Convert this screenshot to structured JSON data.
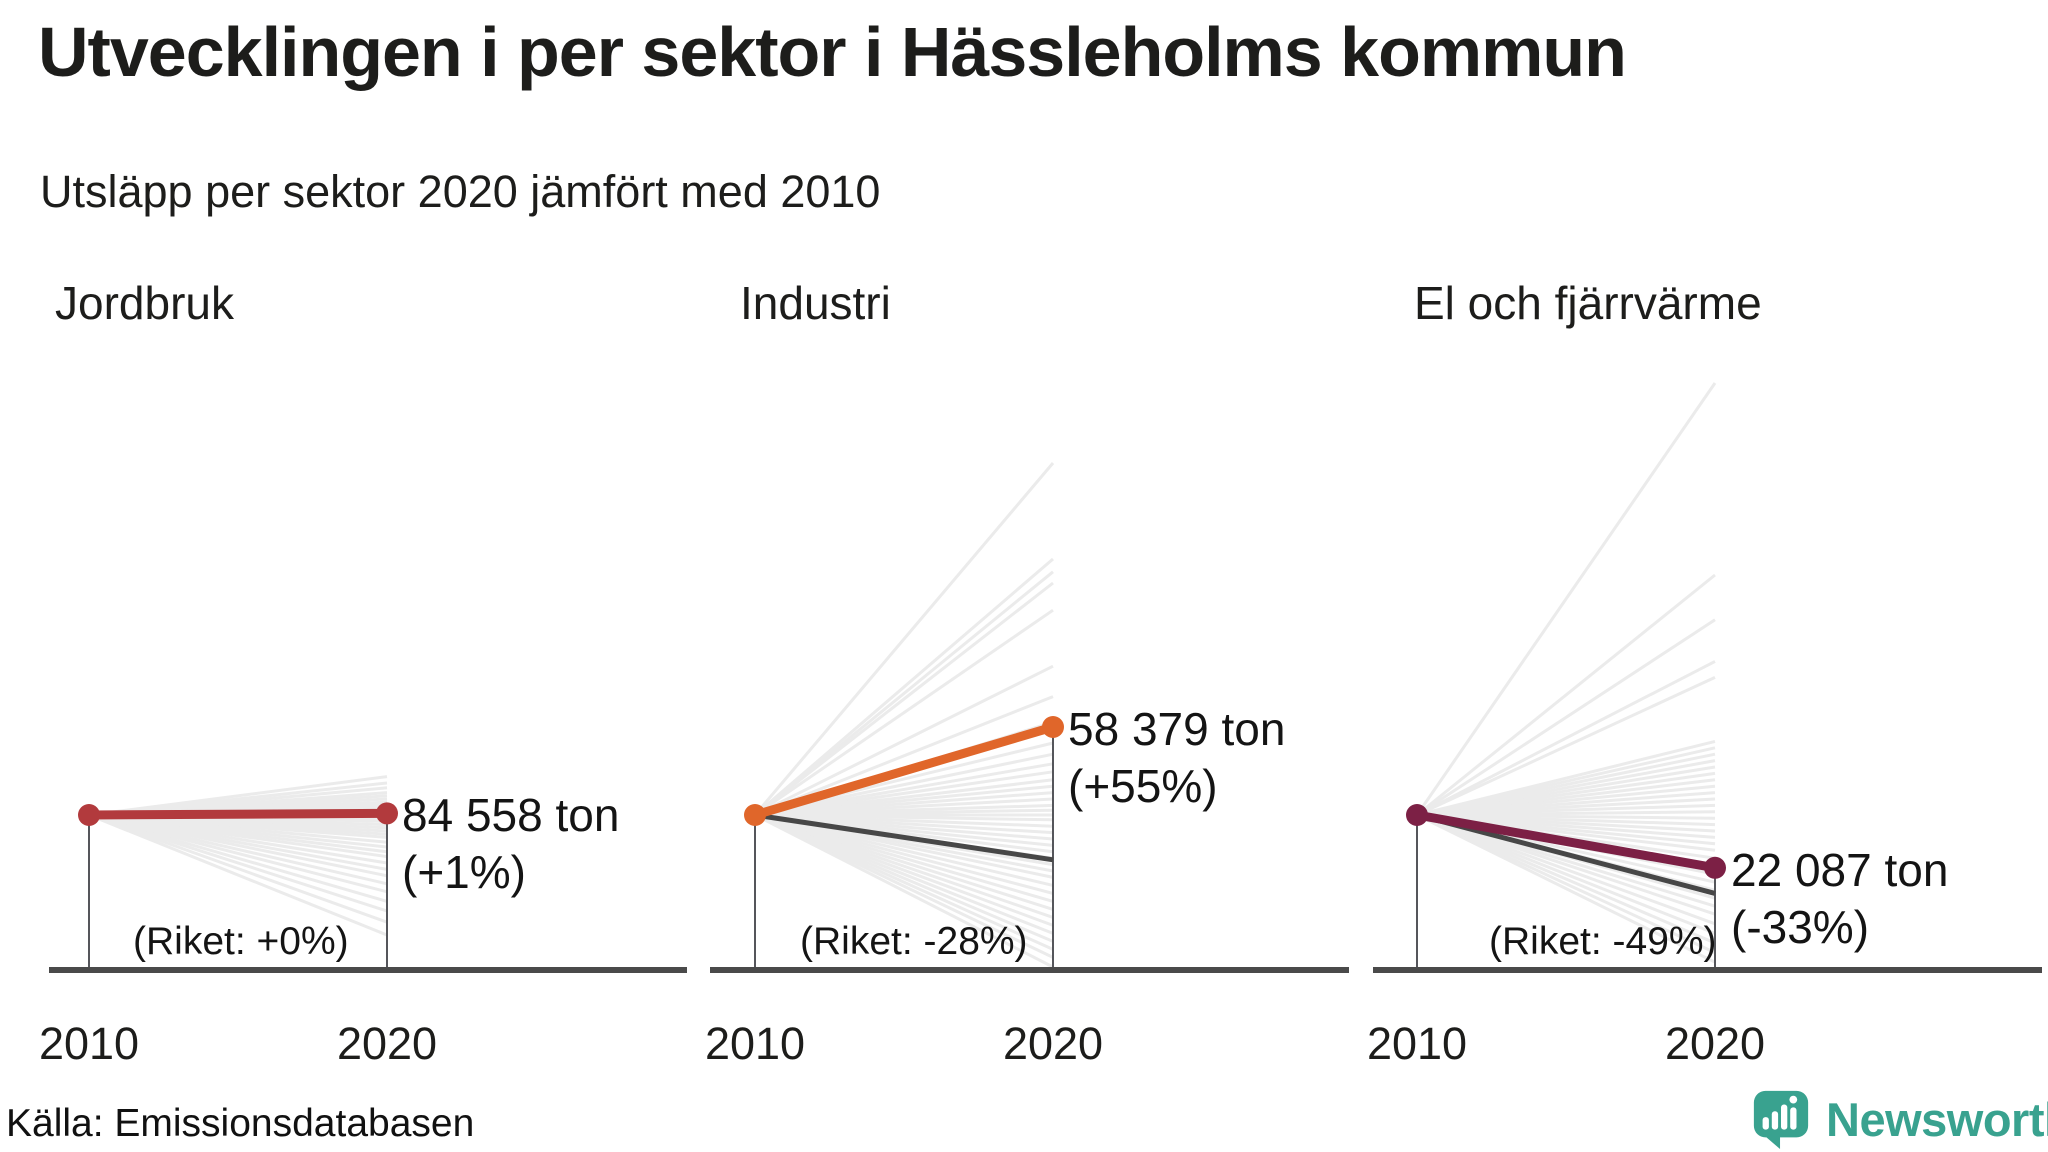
{
  "header": {
    "title": "Utvecklingen i per sektor i Hässleholms kommun",
    "subtitle": "Utsläpp per sektor 2020 jämfört med 2010"
  },
  "source_label": "Källa: Emissionsdatabasen",
  "brand": {
    "name": "Newsworthy",
    "color": "#39a28f",
    "icon": "newsworthy-speech-bubble-barchart-icon"
  },
  "chart_data": {
    "type": "line",
    "variant": "slope-fan-small-multiples",
    "description": "Three slope charts comparing 2020 emissions vs 2010 per sector; gray fan lines are other municipalities (estimated), dark line is national average (Riket), colored line is Hässleholms kommun.",
    "x_labels": [
      "2010",
      "2020"
    ],
    "unit": "ton",
    "grid": false,
    "panels": [
      {
        "title": "Jordbruk",
        "color": "#b23a3d",
        "value_2020_ton": 84558,
        "value_label": "84 558 ton",
        "change_pct": 1,
        "change_label": "(+1%)",
        "riket_pct": 0,
        "riket_label": "(Riket: +0%)",
        "background_lines_pct": [
          24,
          20,
          17,
          14,
          12,
          10,
          8,
          6.5,
          5,
          3.5,
          2,
          0.5,
          -1,
          -2.5,
          -4,
          -6,
          -8,
          -10,
          -12,
          -14,
          -17,
          -20,
          -23,
          -26,
          -30,
          -34,
          -38,
          -43,
          -48,
          -54,
          -60,
          -67,
          -75
        ]
      },
      {
        "title": "Industri",
        "color": "#e0662a",
        "value_2020_ton": 58379,
        "value_label": "58 379 ton",
        "change_pct": 55,
        "change_label": "(+55%)",
        "riket_pct": -28,
        "riket_label": "(Riket: -28%)",
        "background_lines_pct": [
          220,
          160,
          152,
          145,
          128,
          93,
          74,
          58,
          45,
          38,
          32,
          27,
          22,
          18,
          14,
          10,
          6,
          3,
          0,
          -3,
          -7,
          -11,
          -15,
          -19,
          -23,
          -27,
          -31,
          -35,
          -39,
          -44,
          -49,
          -54,
          -59,
          -64,
          -69,
          -74,
          -79,
          -84,
          -89,
          -95
        ]
      },
      {
        "title": "El och fjärrvärme",
        "color": "#7c2045",
        "value_2020_ton": 22087,
        "value_label": "22 087 ton",
        "change_pct": -33,
        "change_label": "(-33%)",
        "riket_pct": -49,
        "riket_label": "(Riket: -49%)",
        "background_lines_pct": [
          270,
          150,
          122,
          96,
          86,
          46,
          42,
          38,
          34,
          30,
          26,
          22,
          18,
          14,
          10,
          6,
          2,
          -2,
          -6,
          -10,
          -14,
          -18,
          -22,
          -27,
          -32,
          -37,
          -42,
          -47,
          -52,
          -57,
          -62,
          -68,
          -74,
          -80,
          -86,
          -92
        ]
      }
    ],
    "style": {
      "background_line_color": "#ebebeb",
      "riket_line_color": "#474747",
      "axis_color": "#4a4a4a",
      "drop_line_color": "#55565b"
    }
  }
}
